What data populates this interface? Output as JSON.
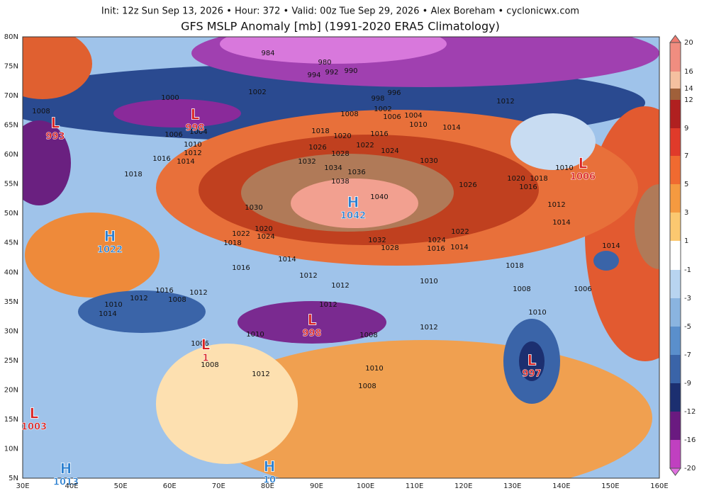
{
  "header": {
    "info": "Init: 12z Sun Sep 13, 2026 • Hour: 372 • Valid: 00z Tue Sep 29, 2026 • Alex Boreham • cyclonicwx.com",
    "title": "GFS MSLP Anomaly [mb] (1991-2020 ERA5 Climatology)"
  },
  "axes": {
    "lon": [
      "30E",
      "40E",
      "50E",
      "60E",
      "70E",
      "80E",
      "90E",
      "100E",
      "110E",
      "120E",
      "130E",
      "140E",
      "150E",
      "160E"
    ],
    "lat": [
      "80N",
      "75N",
      "70N",
      "65N",
      "60N",
      "55N",
      "50N",
      "45N",
      "40N",
      "35N",
      "30N",
      "25N",
      "20N",
      "15N",
      "10N",
      "5N"
    ]
  },
  "colorbar": {
    "ticks": [
      "20",
      "16",
      "14",
      "12",
      "9",
      "7",
      "5",
      "3",
      "1",
      "-1",
      "-3",
      "-5",
      "-7",
      "-9",
      "-12",
      "-16",
      "-20"
    ]
  },
  "centers": [
    {
      "type": "L",
      "value": "993"
    },
    {
      "type": "L",
      "value": "998"
    },
    {
      "type": "H",
      "value": "1042"
    },
    {
      "type": "L",
      "value": "1006"
    },
    {
      "type": "H",
      "value": "1022"
    },
    {
      "type": "L",
      "value": "998"
    },
    {
      "type": "L",
      "value": "997"
    },
    {
      "type": "L",
      "value": "1003"
    },
    {
      "type": "H",
      "value": "1013"
    },
    {
      "type": "H",
      "value": "10"
    },
    {
      "type": "L",
      "value": "1"
    }
  ],
  "isobars": [
    "984",
    "980",
    "994",
    "992",
    "990",
    "996",
    "998",
    "1002",
    "1006",
    "1004",
    "1010",
    "1014",
    "1000",
    "1002",
    "1008",
    "1012",
    "1008",
    "1006",
    "1004",
    "1010",
    "1012",
    "1014",
    "1016",
    "1018",
    "1018",
    "1020",
    "1016",
    "1026",
    "1028",
    "1022",
    "1024",
    "1030",
    "1032",
    "1034",
    "1036",
    "1038",
    "1040",
    "1030",
    "1020",
    "1026",
    "1018",
    "1016",
    "1010",
    "1012",
    "1014",
    "1020",
    "1024",
    "1022",
    "1018",
    "1032",
    "1028",
    "1024",
    "1022",
    "1016",
    "1014",
    "1018",
    "1016",
    "1014",
    "1012",
    "1012",
    "1016",
    "1012",
    "1010",
    "1014",
    "1008",
    "1006",
    "1010",
    "1012",
    "1008",
    "1014",
    "1012",
    "1010",
    "1012",
    "1010",
    "1008",
    "1006",
    "1008",
    "1010",
    "1012",
    "1008"
  ]
}
